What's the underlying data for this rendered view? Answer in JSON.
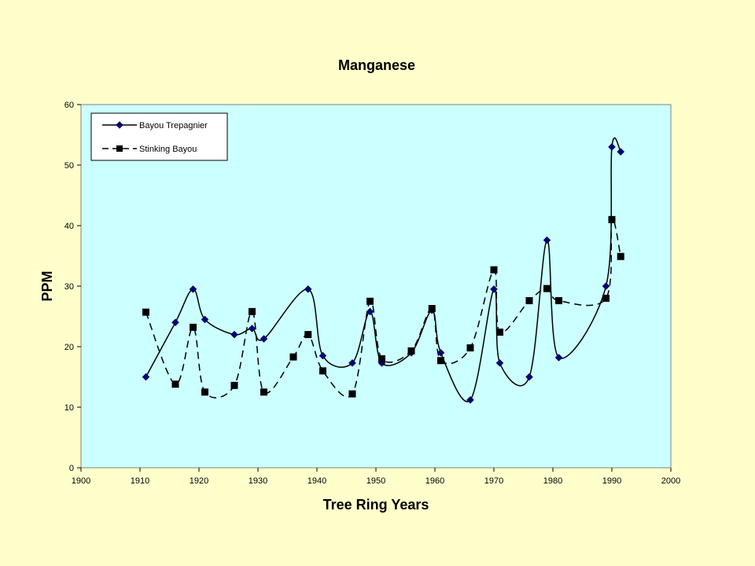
{
  "chart_data": {
    "type": "line",
    "title": "Manganese",
    "xlabel": "Tree Ring Years",
    "ylabel": "PPM",
    "xlim": [
      1900,
      2000
    ],
    "ylim": [
      0,
      60
    ],
    "xticks": [
      "1900",
      "1910",
      "1920",
      "1930",
      "1940",
      "1950",
      "1960",
      "1970",
      "1980",
      "1990",
      "2000"
    ],
    "yticks": [
      "0",
      "10",
      "20",
      "30",
      "40",
      "50",
      "60"
    ],
    "grid": false,
    "legend": "top-left",
    "series": [
      {
        "name": "Bayou Trepagnier",
        "marker": "diamond",
        "line": "solid",
        "color": "#000080",
        "points": [
          [
            1911,
            15
          ],
          [
            1916,
            24
          ],
          [
            1919,
            29.5
          ],
          [
            1921,
            24.5
          ],
          [
            1926,
            22
          ],
          [
            1929,
            23
          ],
          [
            1931,
            21.3
          ],
          [
            1938.5,
            29.5
          ],
          [
            1941,
            18.5
          ],
          [
            1946,
            17.3
          ],
          [
            1949,
            25.8
          ],
          [
            1951,
            17.3
          ],
          [
            1956,
            19
          ],
          [
            1959.5,
            26
          ],
          [
            1961,
            19
          ],
          [
            1966,
            11.2
          ],
          [
            1970,
            29.5
          ],
          [
            1971,
            17.3
          ],
          [
            1976,
            15
          ],
          [
            1979,
            37.6
          ],
          [
            1981,
            18.2
          ],
          [
            1989,
            30
          ],
          [
            1990,
            53
          ],
          [
            1991.5,
            52.2
          ]
        ]
      },
      {
        "name": "Stinking Bayou",
        "marker": "square",
        "line": "dashed",
        "color": "#000000",
        "points": [
          [
            1911,
            25.7
          ],
          [
            1916,
            13.8
          ],
          [
            1919,
            23.2
          ],
          [
            1921,
            12.5
          ],
          [
            1926,
            13.6
          ],
          [
            1929,
            25.8
          ],
          [
            1931,
            12.5
          ],
          [
            1936,
            18.3
          ],
          [
            1938.5,
            22
          ],
          [
            1941,
            16
          ],
          [
            1946,
            12.2
          ],
          [
            1949,
            27.5
          ],
          [
            1951,
            18
          ],
          [
            1956,
            19.3
          ],
          [
            1959.5,
            26.3
          ],
          [
            1961,
            17.7
          ],
          [
            1966,
            19.8
          ],
          [
            1970,
            32.7
          ],
          [
            1971,
            22.4
          ],
          [
            1976,
            27.6
          ],
          [
            1979,
            29.6
          ],
          [
            1981,
            27.6
          ],
          [
            1989,
            28
          ],
          [
            1990,
            41
          ],
          [
            1991.5,
            34.9
          ]
        ]
      }
    ]
  },
  "colors": {
    "page_background": "#FFFFCC",
    "plot_background": "#CCFFFF"
  }
}
